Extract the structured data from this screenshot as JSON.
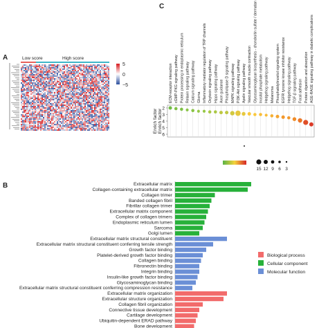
{
  "panels": {
    "a": {
      "letter": "A",
      "group_low": "Low score",
      "group_high": "High score",
      "colorbar_ticks": [
        "5",
        "0",
        "−5"
      ],
      "colors": {
        "low_bar": "#e8605b",
        "high_bar": "#3eb6c8",
        "pos": "#d7191c",
        "mid": "#ffffff",
        "neg": "#2c4f9e"
      }
    },
    "b": {
      "letter": "B",
      "legend": [
        {
          "label": "Biological process",
          "color": "#f26b6b"
        },
        {
          "label": "Cellular component",
          "color": "#27b13a"
        },
        {
          "label": "Molecular function",
          "color": "#6b8fd6"
        }
      ]
    },
    "c": {
      "letter": "C",
      "ylabels": [
        "Enrich factor",
        "Enrich factor"
      ],
      "size_legend": [
        "15",
        "12",
        "9",
        "6",
        "3"
      ],
      "color_legend_ticks": [
        "",
        "",
        "",
        "",
        ""
      ]
    }
  },
  "chart_data": [
    {
      "type": "heatmap",
      "panel": "A",
      "groups": [
        "Low score",
        "High score"
      ],
      "color_range": [
        -5,
        5
      ]
    },
    {
      "type": "bar",
      "panel": "B",
      "orientation": "horizontal",
      "categories": [
        "Extracellular matrix",
        "Collagen-containing extracellular matrix",
        "Collagen trimer",
        "Banded collagen fibril",
        "Fibrillar collagen trimer",
        "Extracellular matrix component",
        "Complex of collagen trimers",
        "Endoplasmic reticulum lumen",
        "Sarcoma",
        "Golgi lumen",
        "Extracellular matrix structural constituent",
        "Extracellular matrix structural constituent conferring tensile strength",
        "Growth factor binding",
        "Platelet-derived growth factor binding",
        "Collagen binding",
        "Fibronectin binding",
        "Integrin binding",
        "Insulin-like growth factor binding",
        "Glycosaminoglycan binding",
        "Extracellular matrix structural constituent conferring compression resistance",
        "Extracellular matrix organization",
        "Extracellular structure organization",
        "Collagen fibril organization",
        "Connective tissue development",
        "Cartilage development",
        "Ubiquitin-dependent ERAD pathway",
        "Bone development"
      ],
      "values": [
        22,
        21,
        11.5,
        10.5,
        10,
        9.5,
        9,
        8.5,
        8,
        7,
        15,
        11,
        9,
        8,
        7.5,
        7,
        7,
        6.5,
        6,
        5,
        15,
        14,
        8,
        7,
        6.5,
        6,
        5.5
      ],
      "group": [
        "CC",
        "CC",
        "CC",
        "CC",
        "CC",
        "CC",
        "CC",
        "CC",
        "CC",
        "CC",
        "MF",
        "MF",
        "MF",
        "MF",
        "MF",
        "MF",
        "MF",
        "MF",
        "MF",
        "MF",
        "BP",
        "BP",
        "BP",
        "BP",
        "BP",
        "BP",
        "BP"
      ],
      "series": [
        {
          "name": "Biological process",
          "key": "BP"
        },
        {
          "name": "Cellular component",
          "key": "CC"
        },
        {
          "name": "Molecular function",
          "key": "MF"
        }
      ]
    },
    {
      "type": "scatter",
      "panel": "C",
      "categories": [
        "ECM-receptor interaction",
        "cGMP-PKG signaling pathway",
        "Protein processing in endoplasmic reticulum",
        "Relaxin signaling pathway",
        "Calcium signaling pathway",
        "Glioma",
        "Inflammatory mediator regulation of TRP channels",
        "Oxytocin signaling pathway",
        "Hippo signaling pathway",
        "Axon guidance",
        "Phospholipase D signaling pathway",
        "MAPK signaling pathway",
        "PI3K-Akt signaling pathway",
        "Apelin signaling pathway",
        "Vascular smooth muscle contraction",
        "Glycosaminoglycan biosynthesis - chondroitin sulfate / dermatan sulfate",
        "Inositol phosphate metabolism",
        "Hedgehog signaling pathway",
        "Melanoma",
        "Phosphatidylinositol signaling system",
        "EGFR tyrosine kinase inhibitor resistance",
        "Hedgehog signaling pathway",
        "TGF-β signaling pathway",
        "Focal adhesion",
        "Protein digestion and absorption",
        "AGE-RAGE signaling pathway in diabetic complications"
      ],
      "enrich_factor": [
        2,
        2.1,
        2.2,
        2.3,
        2.4,
        2.5,
        2.5,
        2.6,
        2.6,
        2.7,
        2.7,
        2.8,
        2.8,
        2.9,
        2.9,
        3.0,
        3.0,
        3.1,
        3.2,
        3.3,
        3.4,
        3.5,
        3.7,
        3.9,
        4.2,
        4.5
      ],
      "count": [
        6,
        5,
        5,
        4,
        5,
        4,
        4,
        5,
        5,
        6,
        6,
        9,
        12,
        7,
        6,
        5,
        5,
        4,
        5,
        6,
        6,
        5,
        7,
        9,
        11,
        8
      ],
      "color_level": [
        0.9,
        0.85,
        0.85,
        0.8,
        0.8,
        0.75,
        0.75,
        0.7,
        0.7,
        0.65,
        0.65,
        0.6,
        0.55,
        0.55,
        0.5,
        0.5,
        0.45,
        0.45,
        0.4,
        0.35,
        0.3,
        0.3,
        0.25,
        0.2,
        0.1,
        0.05
      ],
      "ylim": [
        2,
        6
      ],
      "y_ticks": [
        2,
        3,
        4,
        5,
        6
      ]
    }
  ]
}
